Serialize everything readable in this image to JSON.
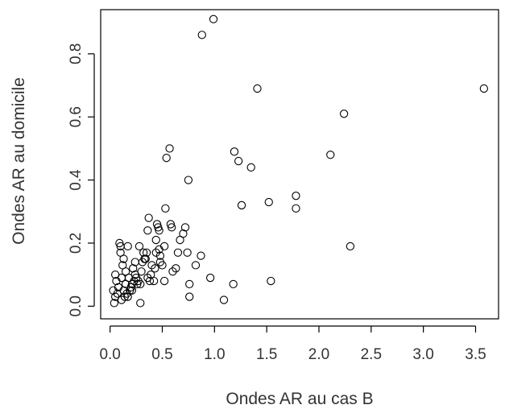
{
  "chart_data": {
    "type": "scatter",
    "title": "",
    "xlabel": "Ondes AR au cas B",
    "ylabel": "Ondes AR au domicile",
    "xlim": [
      -0.09,
      3.72
    ],
    "ylim": [
      -0.04,
      0.94
    ],
    "x_ticks": [
      {
        "value": 0.0,
        "label": "0.0"
      },
      {
        "value": 0.5,
        "label": "0.5"
      },
      {
        "value": 1.0,
        "label": "1.0"
      },
      {
        "value": 1.5,
        "label": "1.5"
      },
      {
        "value": 2.0,
        "label": "2.0"
      },
      {
        "value": 2.5,
        "label": "2.5"
      },
      {
        "value": 3.0,
        "label": "3.0"
      },
      {
        "value": 3.5,
        "label": "3.5"
      }
    ],
    "y_ticks": [
      {
        "value": 0.0,
        "label": "0.0"
      },
      {
        "value": 0.2,
        "label": "0.2"
      },
      {
        "value": 0.4,
        "label": "0.4"
      },
      {
        "value": 0.6,
        "label": "0.6"
      },
      {
        "value": 0.8,
        "label": "0.8"
      }
    ],
    "grid": false,
    "legend": "none",
    "marker": "open-circle",
    "marker_color": "#000000",
    "series": [
      {
        "points": [
          [
            0.99,
            0.91
          ],
          [
            0.88,
            0.86
          ],
          [
            3.58,
            0.69
          ],
          [
            1.41,
            0.69
          ],
          [
            2.24,
            0.61
          ],
          [
            0.57,
            0.5
          ],
          [
            0.54,
            0.47
          ],
          [
            1.19,
            0.49
          ],
          [
            1.23,
            0.46
          ],
          [
            1.35,
            0.44
          ],
          [
            2.11,
            0.48
          ],
          [
            0.75,
            0.4
          ],
          [
            1.78,
            0.35
          ],
          [
            1.78,
            0.31
          ],
          [
            1.52,
            0.33
          ],
          [
            1.26,
            0.32
          ],
          [
            2.3,
            0.19
          ],
          [
            1.54,
            0.08
          ],
          [
            1.18,
            0.07
          ],
          [
            1.09,
            0.02
          ],
          [
            0.96,
            0.09
          ],
          [
            0.76,
            0.03
          ],
          [
            0.76,
            0.07
          ],
          [
            0.87,
            0.16
          ],
          [
            0.82,
            0.13
          ],
          [
            0.74,
            0.17
          ],
          [
            0.7,
            0.23
          ],
          [
            0.72,
            0.25
          ],
          [
            0.67,
            0.21
          ],
          [
            0.65,
            0.17
          ],
          [
            0.63,
            0.12
          ],
          [
            0.6,
            0.11
          ],
          [
            0.58,
            0.26
          ],
          [
            0.59,
            0.25
          ],
          [
            0.53,
            0.31
          ],
          [
            0.52,
            0.08
          ],
          [
            0.5,
            0.13
          ],
          [
            0.48,
            0.16
          ],
          [
            0.47,
            0.18
          ],
          [
            0.46,
            0.25
          ],
          [
            0.47,
            0.24
          ],
          [
            0.45,
            0.26
          ],
          [
            0.44,
            0.21
          ],
          [
            0.43,
            0.12
          ],
          [
            0.42,
            0.08
          ],
          [
            0.4,
            0.13
          ],
          [
            0.39,
            0.1
          ],
          [
            0.38,
            0.08
          ],
          [
            0.37,
            0.28
          ],
          [
            0.36,
            0.24
          ],
          [
            0.35,
            0.17
          ],
          [
            0.34,
            0.15
          ],
          [
            0.33,
            0.15
          ],
          [
            0.32,
            0.17
          ],
          [
            0.31,
            0.14
          ],
          [
            0.3,
            0.11
          ],
          [
            0.29,
            0.01
          ],
          [
            0.28,
            0.19
          ],
          [
            0.27,
            0.08
          ],
          [
            0.26,
            0.07
          ],
          [
            0.25,
            0.09
          ],
          [
            0.24,
            0.1
          ],
          [
            0.23,
            0.08
          ],
          [
            0.22,
            0.12
          ],
          [
            0.21,
            0.07
          ],
          [
            0.2,
            0.06
          ],
          [
            0.19,
            0.05
          ],
          [
            0.18,
            0.09
          ],
          [
            0.17,
            0.19
          ],
          [
            0.16,
            0.04
          ],
          [
            0.15,
            0.07
          ],
          [
            0.14,
            0.03
          ],
          [
            0.13,
            0.15
          ],
          [
            0.13,
            0.05
          ],
          [
            0.12,
            0.13
          ],
          [
            0.11,
            0.09
          ],
          [
            0.1,
            0.17
          ],
          [
            0.1,
            0.19
          ],
          [
            0.09,
            0.2
          ],
          [
            0.08,
            0.06
          ],
          [
            0.07,
            0.04
          ],
          [
            0.06,
            0.08
          ],
          [
            0.05,
            0.03
          ],
          [
            0.05,
            0.1
          ],
          [
            0.04,
            0.01
          ],
          [
            0.03,
            0.05
          ],
          [
            0.17,
            0.03
          ],
          [
            0.21,
            0.05
          ],
          [
            0.15,
            0.11
          ],
          [
            0.11,
            0.02
          ],
          [
            0.24,
            0.14
          ],
          [
            0.48,
            0.14
          ],
          [
            0.52,
            0.19
          ],
          [
            0.44,
            0.17
          ],
          [
            0.29,
            0.07
          ],
          [
            0.36,
            0.09
          ]
        ]
      }
    ]
  }
}
